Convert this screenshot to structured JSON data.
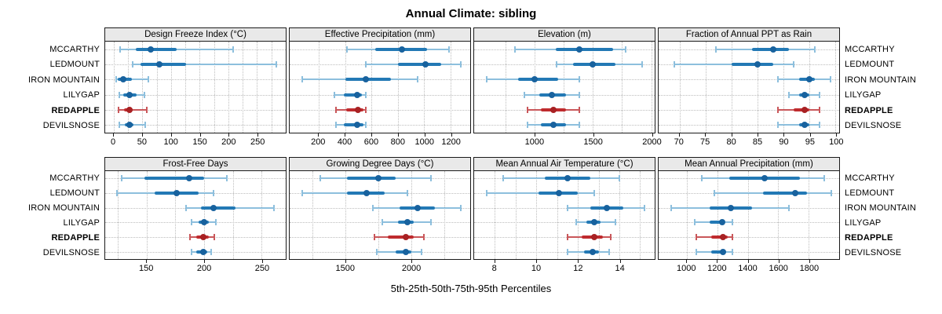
{
  "title": "Annual Climate: sibling",
  "caption": "5th-25th-50th-75th-95th Percentiles",
  "sites": [
    "MCCARTHY",
    "LEDMOUNT",
    "IRON MOUNTAIN",
    "LILYGAP",
    "REDAPPLE",
    "DEVILSNOSE"
  ],
  "highlight_site": "REDAPPLE",
  "colors": {
    "blue_whisker": "#8dbfdd",
    "blue_box": "#2379b5",
    "blue_dot": "#18629e",
    "red_whisker": "#c9575a",
    "red_box": "#bf2b2e",
    "red_dot": "#a82123",
    "strip_bg": "#e9e9e9",
    "grid": "#bdbdbd",
    "border": "#1a1a1a"
  },
  "chart_data": {
    "type": "dotplot-percentiles",
    "percentiles": [
      5,
      25,
      50,
      75,
      95
    ],
    "sites_top_to_bottom": [
      "MCCARTHY",
      "LEDMOUNT",
      "IRON MOUNTAIN",
      "LILYGAP",
      "REDAPPLE",
      "DEVILSNOSE"
    ],
    "legend": "5th-25th-50th-75th-95th Percentiles; REDAPPLE highlighted in red",
    "panels": [
      {
        "title": "Design Freeze Index (°C)",
        "row": 0,
        "ticks": [
          0,
          50,
          100,
          150,
          200,
          250
        ],
        "gridlines": [
          0,
          25,
          50,
          75,
          100,
          125,
          150,
          175,
          200,
          225,
          250,
          275
        ],
        "domain": [
          -15,
          300
        ],
        "values": [
          [
            11,
            38,
            65,
            110,
            208
          ],
          [
            33,
            47,
            80,
            126,
            283
          ],
          [
            4,
            7,
            17,
            32,
            60
          ],
          [
            10,
            17,
            27,
            40,
            53
          ],
          [
            8,
            18,
            27,
            33,
            58
          ],
          [
            9,
            19,
            27,
            35,
            55
          ]
        ]
      },
      {
        "title": "Effective Precipitation (mm)",
        "row": 0,
        "ticks": [
          200,
          400,
          600,
          800,
          1000,
          1200
        ],
        "gridlines": [
          200,
          400,
          600,
          800,
          1000,
          1200
        ],
        "domain": [
          -20,
          1350
        ],
        "values": [
          [
            415,
            630,
            830,
            1020,
            1190
          ],
          [
            560,
            800,
            1010,
            1130,
            1280
          ],
          [
            75,
            400,
            560,
            750,
            950
          ],
          [
            320,
            390,
            490,
            530,
            560
          ],
          [
            330,
            410,
            500,
            540,
            560
          ],
          [
            330,
            390,
            490,
            540,
            560
          ]
        ]
      },
      {
        "title": "Elevation (m)",
        "row": 0,
        "ticks": [
          1000,
          1500,
          2000
        ],
        "gridlines": [
          750,
          1000,
          1250,
          1500,
          1750,
          2000
        ],
        "domain": [
          480,
          2030
        ],
        "values": [
          [
            830,
            1180,
            1380,
            1670,
            1780
          ],
          [
            1190,
            1330,
            1500,
            1690,
            1920
          ],
          [
            590,
            860,
            1000,
            1200,
            1380
          ],
          [
            910,
            1040,
            1150,
            1270,
            1380
          ],
          [
            940,
            1050,
            1160,
            1270,
            1380
          ],
          [
            940,
            1050,
            1160,
            1270,
            1380
          ]
        ]
      },
      {
        "title": "Fraction of Annual PPT as Rain",
        "row": 0,
        "ticks": [
          70,
          75,
          80,
          85,
          90,
          95,
          100
        ],
        "gridlines": [
          70,
          75,
          80,
          85,
          90,
          95,
          100
        ],
        "domain": [
          66,
          100.7
        ],
        "values": [
          [
            77,
            84,
            88,
            91,
            96
          ],
          [
            69,
            80,
            85,
            88,
            92
          ],
          [
            89,
            93,
            95,
            96,
            99
          ],
          [
            91,
            93,
            94,
            95,
            97
          ],
          [
            89,
            92,
            94,
            95,
            97
          ],
          [
            89,
            93,
            94,
            95,
            97
          ]
        ]
      },
      {
        "title": "Frost-Free Days",
        "row": 1,
        "ticks": [
          150,
          200,
          250
        ],
        "gridlines": [
          125,
          150,
          175,
          200,
          225,
          250
        ],
        "domain": [
          114,
          271
        ],
        "values": [
          [
            128,
            148,
            187,
            200,
            220
          ],
          [
            124,
            157,
            176,
            195,
            208
          ],
          [
            184,
            197,
            208,
            227,
            261
          ],
          [
            189,
            195,
            200,
            204,
            210
          ],
          [
            188,
            193,
            199,
            204,
            209
          ],
          [
            189,
            193,
            199,
            203,
            206
          ]
        ]
      },
      {
        "title": "Growing Degree Days (°C)",
        "row": 1,
        "ticks": [
          1500,
          2000
        ],
        "gridlines": [
          1250,
          1500,
          1750,
          2000,
          2250
        ],
        "domain": [
          1075,
          2450
        ],
        "values": [
          [
            1310,
            1510,
            1750,
            1880,
            2150
          ],
          [
            1170,
            1510,
            1660,
            1800,
            1970
          ],
          [
            1710,
            1910,
            2050,
            2180,
            2380
          ],
          [
            1780,
            1900,
            1970,
            2020,
            2150
          ],
          [
            1720,
            1820,
            1960,
            2020,
            2100
          ],
          [
            1740,
            1880,
            1960,
            2000,
            2080
          ]
        ]
      },
      {
        "title": "Mean Annual Air Temperature (°C)",
        "row": 1,
        "ticks": [
          8,
          10,
          12,
          14
        ],
        "gridlines": [
          8,
          9,
          10,
          11,
          12,
          13,
          14,
          15
        ],
        "domain": [
          7.0,
          15.7
        ],
        "values": [
          [
            8.4,
            10.4,
            11.5,
            12.6,
            14.0
          ],
          [
            7.6,
            10.1,
            11.1,
            12.0,
            12.8
          ],
          [
            11.5,
            12.6,
            13.4,
            14.2,
            15.2
          ],
          [
            11.9,
            12.4,
            12.8,
            13.1,
            13.8
          ],
          [
            11.5,
            12.2,
            12.8,
            13.2,
            13.6
          ],
          [
            11.5,
            12.3,
            12.7,
            13.0,
            13.5
          ]
        ]
      },
      {
        "title": "Mean Annual Precipitation (mm)",
        "row": 1,
        "ticks": [
          1000,
          1200,
          1400,
          1600,
          1800
        ],
        "gridlines": [
          1000,
          1200,
          1400,
          1600,
          1800
        ],
        "domain": [
          815,
          2000
        ],
        "values": [
          [
            1100,
            1280,
            1510,
            1740,
            1900
          ],
          [
            1180,
            1500,
            1710,
            1790,
            1950
          ],
          [
            900,
            1150,
            1290,
            1430,
            1670
          ],
          [
            1050,
            1150,
            1230,
            1250,
            1300
          ],
          [
            1060,
            1160,
            1240,
            1270,
            1300
          ],
          [
            1060,
            1160,
            1240,
            1260,
            1300
          ]
        ]
      }
    ]
  }
}
